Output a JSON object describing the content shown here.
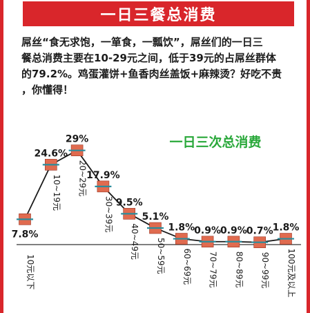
{
  "header": {
    "title": "一日三餐总消费"
  },
  "intro": {
    "lines": [
      "屌丝“食无求饱，一箪食，一瓢饮”，屌丝们的一日三",
      "餐总消费主要在10-29元之间，低于39元的占屌丝群体",
      "的79.2%。鸡蛋灌饼+鱼香肉丝盖饭+麻辣烫？好吃不贵",
      "，你懂得！"
    ]
  },
  "colors": {
    "accent": "#d9262b",
    "subtitle": "#29a83a",
    "marker": "#e06b4f",
    "marker_bar": "#2a8c9c"
  },
  "chart_data": {
    "type": "line",
    "title": "一日三次总消费",
    "categories": [
      "10元以下",
      "10~19元",
      "20~29元",
      "30~39元",
      "40~49元",
      "50~59元",
      "60~69元",
      "70~79元",
      "80~89元",
      "90~99元",
      "100元及以上"
    ],
    "value_labels": [
      "7.8%",
      "24.6%",
      "29%",
      "17.9%",
      "9.5%",
      "5.1%",
      "1.8%",
      "0.9%",
      "0.9%",
      "0.7%",
      "1.8%"
    ],
    "series": [
      {
        "values": [
          7.8,
          24.6,
          29,
          17.9,
          9.5,
          5.1,
          1.8,
          0.9,
          0.9,
          0.7,
          1.8
        ]
      }
    ],
    "ylim": [
      0,
      30
    ],
    "grid": false
  }
}
